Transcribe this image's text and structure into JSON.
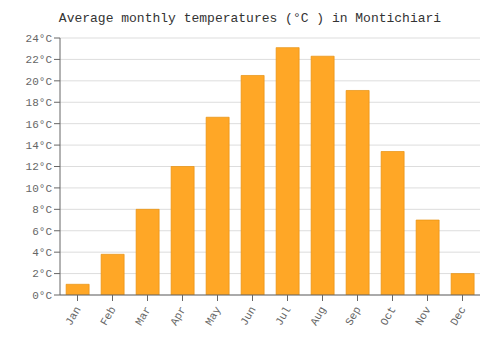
{
  "chart_data": {
    "type": "bar",
    "title": "Average monthly temperatures (°C ) in Montichiari",
    "categories": [
      "Jan",
      "Feb",
      "Mar",
      "Apr",
      "May",
      "Jun",
      "Jul",
      "Aug",
      "Sep",
      "Oct",
      "Nov",
      "Dec"
    ],
    "values": [
      1.0,
      3.8,
      8.0,
      12.0,
      16.6,
      20.5,
      23.1,
      22.3,
      19.1,
      13.4,
      7.0,
      2.0
    ],
    "color": "#FFA726",
    "ylim": [
      0,
      24
    ],
    "yticks": [
      {
        "value": 0,
        "label": "0°C"
      },
      {
        "value": 2,
        "label": "2°C"
      },
      {
        "value": 4,
        "label": "4°C"
      },
      {
        "value": 6,
        "label": "6°C"
      },
      {
        "value": 8,
        "label": "8°C"
      },
      {
        "value": 10,
        "label": "10°C"
      },
      {
        "value": 12,
        "label": "12°C"
      },
      {
        "value": 14,
        "label": "14°C"
      },
      {
        "value": 16,
        "label": "16°C"
      },
      {
        "value": 18,
        "label": "18°C"
      },
      {
        "value": 20,
        "label": "20°C"
      },
      {
        "value": 22,
        "label": "22°C"
      },
      {
        "value": 24,
        "label": "24°C"
      }
    ],
    "grid": true
  }
}
